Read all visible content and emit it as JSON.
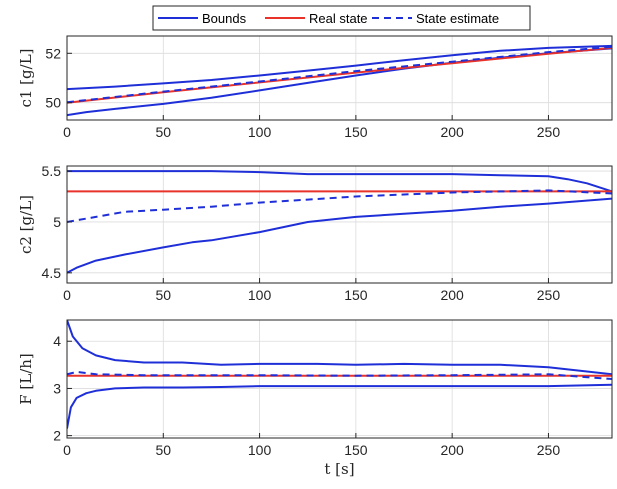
{
  "legend": {
    "entries": [
      {
        "label": "Bounds",
        "color": "#1f2fd8",
        "style": "solid"
      },
      {
        "label": "Real state",
        "color": "#e8322a",
        "style": "solid"
      },
      {
        "label": "State estimate",
        "color": "#1f2fd8",
        "style": "dashed"
      }
    ],
    "placement": "top-center"
  },
  "xlabel": "t [s]",
  "colors": {
    "bounds": "#1f2fd8",
    "real": "#e8322a",
    "estimate": "#1f2fd8"
  },
  "chart_data": [
    {
      "type": "line",
      "ylabel": "c1 [g/L]",
      "xlim": [
        0,
        283
      ],
      "ylim": [
        49.3,
        52.7
      ],
      "xticks": [
        0,
        50,
        100,
        150,
        200,
        250
      ],
      "yticks": [
        50,
        52
      ],
      "grid": true,
      "series": [
        {
          "name": "Bounds",
          "role": "upper",
          "x": [
            0,
            25,
            50,
            75,
            100,
            125,
            150,
            175,
            200,
            225,
            250,
            283
          ],
          "y": [
            50.55,
            50.65,
            50.78,
            50.92,
            51.1,
            51.3,
            51.5,
            51.72,
            51.92,
            52.1,
            52.22,
            52.3
          ]
        },
        {
          "name": "Bounds",
          "role": "lower",
          "x": [
            0,
            10,
            25,
            50,
            75,
            100,
            125,
            150,
            175,
            200,
            225,
            250,
            283
          ],
          "y": [
            49.5,
            49.62,
            49.75,
            49.95,
            50.2,
            50.5,
            50.8,
            51.1,
            51.38,
            51.62,
            51.82,
            52.0,
            52.2
          ]
        },
        {
          "name": "Real state",
          "role": "real",
          "x": [
            0,
            50,
            100,
            150,
            200,
            250,
            283
          ],
          "y": [
            50.0,
            50.42,
            50.82,
            51.22,
            51.6,
            51.98,
            52.22
          ]
        },
        {
          "name": "State estimate",
          "role": "estimate",
          "x": [
            0,
            50,
            100,
            150,
            200,
            250,
            283
          ],
          "y": [
            50.02,
            50.45,
            50.86,
            51.28,
            51.66,
            52.05,
            52.26
          ]
        }
      ]
    },
    {
      "type": "line",
      "ylabel": "c2 [g/L]",
      "xlim": [
        0,
        283
      ],
      "ylim": [
        4.4,
        5.55
      ],
      "xticks": [
        0,
        50,
        100,
        150,
        200,
        250
      ],
      "yticks": [
        4.5,
        5,
        5.5
      ],
      "grid": true,
      "series": [
        {
          "name": "Bounds",
          "role": "upper",
          "x": [
            0,
            25,
            50,
            75,
            100,
            125,
            150,
            175,
            200,
            225,
            250,
            260,
            270,
            283
          ],
          "y": [
            5.5,
            5.5,
            5.5,
            5.5,
            5.49,
            5.47,
            5.47,
            5.47,
            5.47,
            5.46,
            5.45,
            5.42,
            5.38,
            5.3
          ]
        },
        {
          "name": "Bounds",
          "role": "lower",
          "x": [
            0,
            5,
            15,
            30,
            50,
            65,
            75,
            100,
            125,
            150,
            175,
            200,
            225,
            250,
            283
          ],
          "y": [
            4.5,
            4.55,
            4.62,
            4.68,
            4.75,
            4.8,
            4.82,
            4.9,
            5.0,
            5.05,
            5.08,
            5.11,
            5.15,
            5.18,
            5.23
          ]
        },
        {
          "name": "Real state",
          "role": "real",
          "x": [
            0,
            283
          ],
          "y": [
            5.3,
            5.3
          ]
        },
        {
          "name": "State estimate",
          "role": "estimate",
          "x": [
            0,
            15,
            30,
            50,
            75,
            100,
            125,
            150,
            175,
            200,
            225,
            250,
            283
          ],
          "y": [
            5.0,
            5.05,
            5.1,
            5.12,
            5.15,
            5.19,
            5.22,
            5.25,
            5.27,
            5.29,
            5.3,
            5.31,
            5.28
          ]
        }
      ]
    },
    {
      "type": "line",
      "ylabel": "F [L/h]",
      "xlim": [
        0,
        283
      ],
      "ylim": [
        1.95,
        4.45
      ],
      "xticks": [
        0,
        50,
        100,
        150,
        200,
        250
      ],
      "yticks": [
        2,
        3,
        4
      ],
      "grid": true,
      "series": [
        {
          "name": "Bounds",
          "role": "upper",
          "x": [
            0,
            3,
            8,
            15,
            25,
            40,
            60,
            80,
            100,
            130,
            150,
            175,
            200,
            225,
            250,
            283
          ],
          "y": [
            4.45,
            4.1,
            3.85,
            3.7,
            3.6,
            3.55,
            3.55,
            3.5,
            3.52,
            3.52,
            3.5,
            3.52,
            3.5,
            3.5,
            3.45,
            3.3
          ]
        },
        {
          "name": "Bounds",
          "role": "lower",
          "x": [
            0,
            2,
            5,
            10,
            15,
            25,
            40,
            60,
            80,
            100,
            130,
            150,
            175,
            200,
            225,
            250,
            283
          ],
          "y": [
            2.15,
            2.6,
            2.8,
            2.9,
            2.95,
            3.0,
            3.02,
            3.02,
            3.03,
            3.05,
            3.05,
            3.05,
            3.05,
            3.05,
            3.05,
            3.05,
            3.08
          ]
        },
        {
          "name": "Real state",
          "role": "real",
          "x": [
            0,
            283
          ],
          "y": [
            3.27,
            3.27
          ]
        },
        {
          "name": "State estimate",
          "role": "estimate",
          "x": [
            0,
            5,
            15,
            40,
            75,
            100,
            150,
            200,
            250,
            283
          ],
          "y": [
            3.3,
            3.35,
            3.3,
            3.28,
            3.28,
            3.28,
            3.27,
            3.28,
            3.3,
            3.2
          ]
        }
      ]
    }
  ]
}
